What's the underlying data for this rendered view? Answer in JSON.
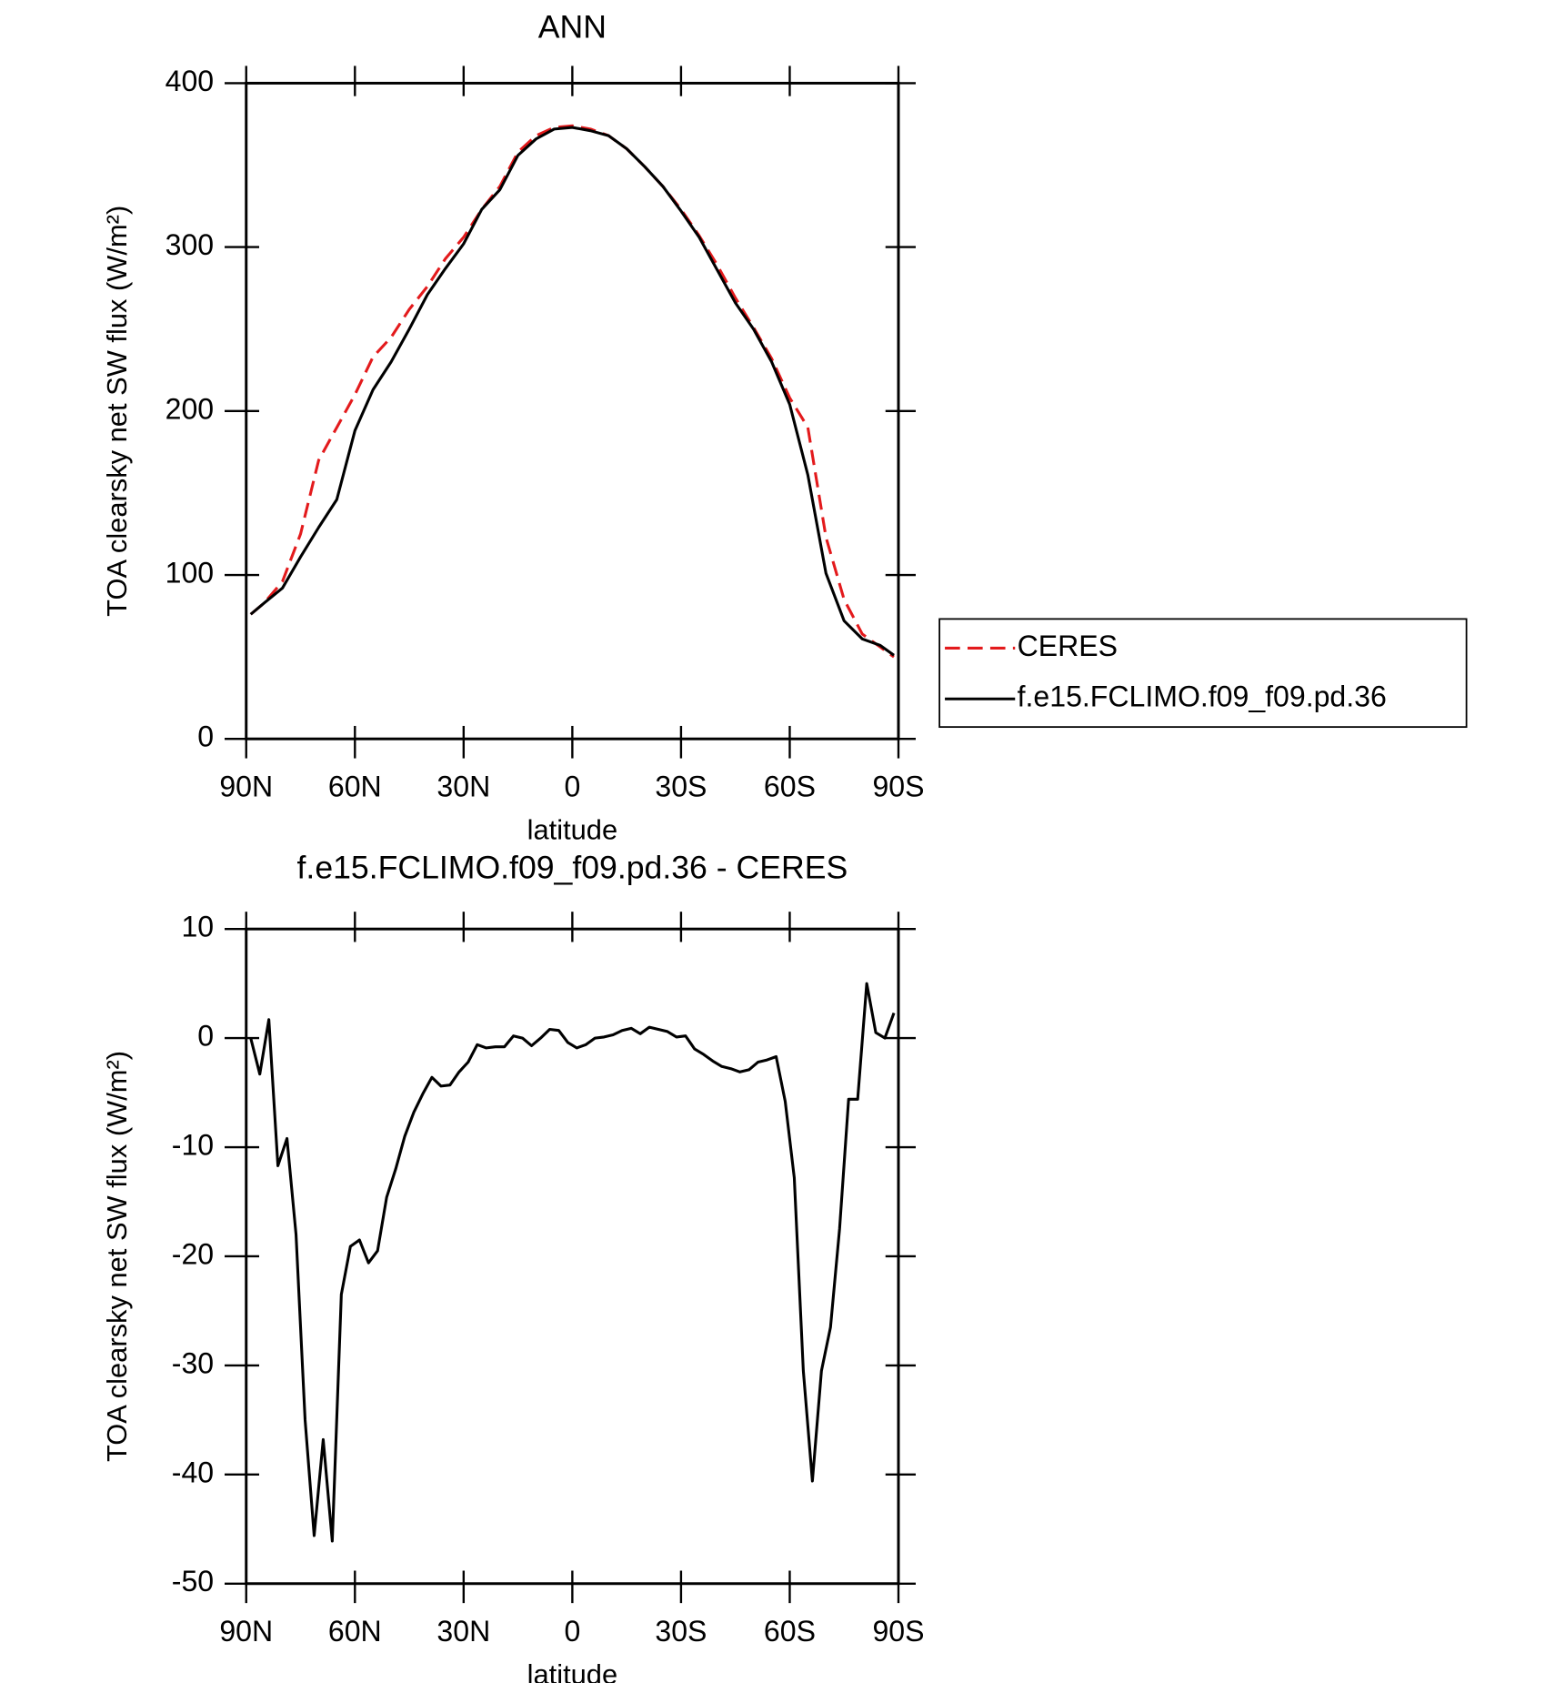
{
  "chart_data": [
    {
      "type": "line",
      "title": "ANN",
      "xlabel": "latitude",
      "ylabel": "TOA clearsky net SW flux (W/m²)",
      "x": [
        88.75,
        85,
        80,
        75,
        70,
        65,
        60,
        55,
        50,
        45,
        40,
        35,
        30,
        25,
        20,
        15,
        10,
        5,
        0,
        -5,
        -10,
        -15,
        -20,
        -25,
        -30,
        -35,
        -40,
        -45,
        -50,
        -55,
        -60,
        -65,
        -70,
        -75,
        -80,
        -85,
        -88.75
      ],
      "series": [
        {
          "name": "CERES",
          "color": "#e31a1c",
          "dashed": true,
          "values": [
            76,
            83,
            96,
            125,
            170,
            190,
            210,
            233,
            245,
            262,
            276,
            293,
            306,
            323,
            337,
            358,
            368,
            373,
            374,
            372,
            368,
            360,
            349,
            337,
            323,
            307,
            289,
            269,
            251,
            232,
            208,
            190,
            123,
            85,
            64,
            56,
            50
          ]
        },
        {
          "name": "f.e15.FCLIMO.f09_f09.pd.36",
          "color": "#000000",
          "dashed": false,
          "values": [
            76,
            83,
            92,
            111,
            129,
            146,
            188,
            213,
            230,
            250,
            271,
            287,
            302,
            323,
            335,
            356,
            366,
            372,
            373,
            371,
            368,
            360,
            349,
            337,
            322,
            306,
            286,
            266,
            250,
            230,
            204,
            161,
            101,
            72,
            61,
            57,
            51
          ]
        }
      ],
      "xlim": [
        90,
        -90
      ],
      "xticks": [
        {
          "value": 90,
          "label": "90N"
        },
        {
          "value": 60,
          "label": "60N"
        },
        {
          "value": 30,
          "label": "30N"
        },
        0,
        {
          "value": -30,
          "label": "30S"
        },
        {
          "value": -60,
          "label": "60S"
        },
        {
          "value": -90,
          "label": "90S"
        }
      ],
      "ylim": [
        0,
        400
      ],
      "yticks": [
        0,
        100,
        200,
        300,
        400
      ],
      "legend": "right"
    },
    {
      "type": "line",
      "title": "f.e15.FCLIMO.f09_f09.pd.36 - CERES",
      "xlabel": "latitude",
      "ylabel": "TOA clearsky net SW flux (W/m²)",
      "x": [
        88.75,
        86.25,
        83.75,
        81.25,
        78.75,
        76.25,
        73.75,
        71.25,
        68.75,
        66.25,
        63.75,
        61.25,
        58.75,
        56.25,
        53.75,
        51.25,
        48.75,
        46.25,
        43.75,
        41.25,
        38.75,
        36.25,
        33.75,
        31.25,
        28.75,
        26.25,
        23.75,
        21.25,
        18.75,
        16.25,
        13.75,
        11.25,
        8.75,
        6.25,
        3.75,
        1.25,
        -1.25,
        -3.75,
        -6.25,
        -8.75,
        -11.25,
        -13.75,
        -16.25,
        -18.75,
        -21.25,
        -23.75,
        -26.25,
        -28.75,
        -31.25,
        -33.75,
        -36.25,
        -38.75,
        -41.25,
        -43.75,
        -46.25,
        -48.75,
        -51.25,
        -53.75,
        -56.25,
        -58.75,
        -61.25,
        -63.75,
        -66.25,
        -68.75,
        -71.25,
        -73.75,
        -76.25,
        -78.75,
        -81.25,
        -83.75,
        -86.25,
        -88.75
      ],
      "color": "#000000",
      "values": [
        0,
        -3.3,
        1.7,
        -11.7,
        -9.2,
        -18,
        -35,
        -45.6,
        -36.8,
        -46.1,
        -23.5,
        -19.1,
        -18.5,
        -20.6,
        -19.5,
        -14.6,
        -12,
        -9,
        -6.8,
        -5.1,
        -3.6,
        -4.4,
        -4.3,
        -3.1,
        -2.2,
        -0.6,
        -0.9,
        -0.8,
        -0.8,
        0.2,
        0,
        -0.7,
        0,
        0.8,
        0.7,
        -0.4,
        -0.9,
        -0.6,
        0,
        0.1,
        0.3,
        0.7,
        0.9,
        0.4,
        1,
        0.8,
        0.6,
        0.1,
        0.2,
        -1,
        -1.5,
        -2.1,
        -2.6,
        -2.8,
        -3.1,
        -2.9,
        -2.2,
        -2,
        -1.7,
        -5.8,
        -12.8,
        -30.5,
        -40.6,
        -30.5,
        -26.5,
        -17.5,
        -5.6,
        -5.6,
        5,
        0.5,
        0,
        2.3
      ],
      "xlim": [
        90,
        -90
      ],
      "xticks": [
        {
          "value": 90,
          "label": "90N"
        },
        {
          "value": 60,
          "label": "60N"
        },
        {
          "value": 30,
          "label": "30N"
        },
        0,
        {
          "value": -30,
          "label": "30S"
        },
        {
          "value": -60,
          "label": "60S"
        },
        {
          "value": -90,
          "label": "90S"
        }
      ],
      "ylim": [
        -50,
        10
      ],
      "yticks": [
        -50,
        -40,
        -30,
        -20,
        -10,
        0,
        10
      ]
    }
  ]
}
